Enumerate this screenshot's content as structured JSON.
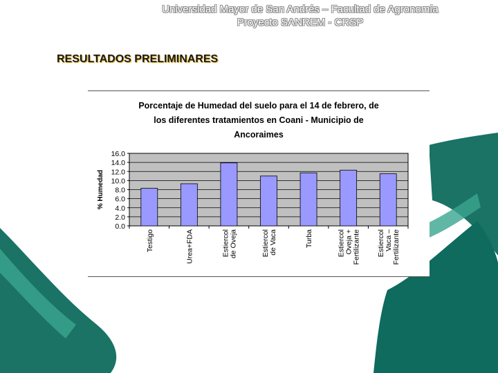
{
  "header": {
    "line1": "Universidad Mayor de San Andrés – Facultad de Agronomía",
    "line2": "Proyecto SANREM - CRSP"
  },
  "section_title": "RESULTADOS PRELIMINARES",
  "colors": {
    "bar": "#9999ff",
    "plot_bg": "#c0c0c0",
    "decor_green": "#0e6b5d"
  },
  "chart_data": {
    "type": "bar",
    "title_lines": [
      "Porcentaje de Humedad del suelo para el 14 de febrero, de",
      "los diferentes tratamientos en Coani - Municipio de",
      "Ancoraimes"
    ],
    "ylabel": "% Humedad",
    "xlabel": "",
    "ylim": [
      0,
      16
    ],
    "yticks": [
      "0.0",
      "2.0",
      "4.0",
      "6.0",
      "8.0",
      "10.0",
      "12.0",
      "14.0",
      "16.0"
    ],
    "grid": "horizontal",
    "categories": [
      [
        "Testigo"
      ],
      [
        "Urea+FDA"
      ],
      [
        "Estiercol",
        "de Oveja"
      ],
      [
        "Estiercol",
        "de Vaca"
      ],
      [
        "Turba"
      ],
      [
        "Estiercol",
        "Oveja +",
        "Fertilizante"
      ],
      [
        "Estiercol",
        "Vaca –",
        "Fertilizante"
      ]
    ],
    "values": [
      8.3,
      9.3,
      13.9,
      11.0,
      11.7,
      12.3,
      11.5
    ]
  }
}
